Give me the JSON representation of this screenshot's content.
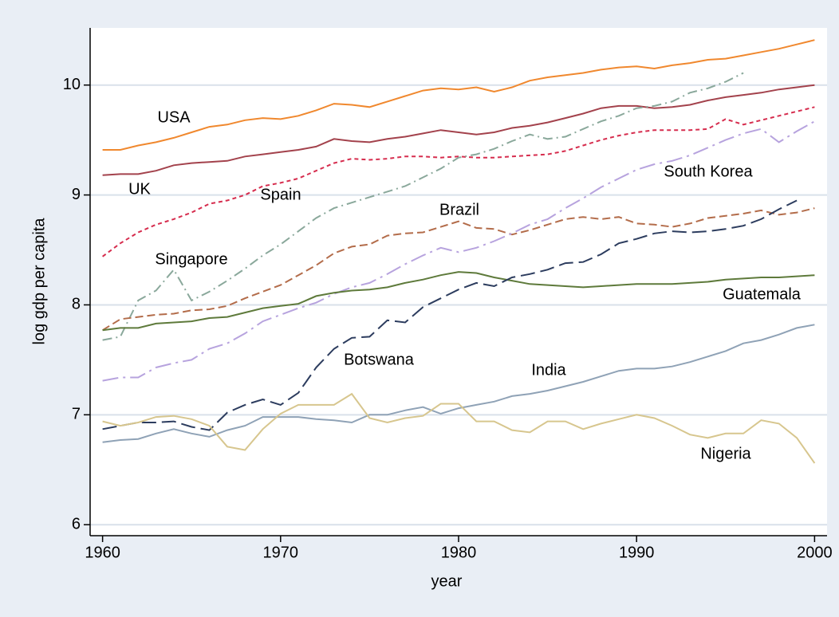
{
  "chart_data": {
    "type": "line",
    "x_label": "year",
    "y_label": "log gdp per capita",
    "x": [
      1960,
      1961,
      1962,
      1963,
      1964,
      1965,
      1966,
      1967,
      1968,
      1969,
      1970,
      1971,
      1972,
      1973,
      1974,
      1975,
      1976,
      1977,
      1978,
      1979,
      1980,
      1981,
      1982,
      1983,
      1984,
      1985,
      1986,
      1987,
      1988,
      1989,
      1990,
      1991,
      1992,
      1993,
      1994,
      1995,
      1996,
      1997,
      1998,
      1999,
      2000
    ],
    "xlim": [
      1959.3,
      2000.7
    ],
    "xticks": [
      1960,
      1970,
      1980,
      1990,
      2000
    ],
    "ylim": [
      5.9,
      10.52
    ],
    "yticks": [
      6,
      7,
      8,
      9,
      10
    ],
    "grid": true,
    "series": [
      {
        "name": "USA",
        "color": "#f0882e",
        "dash": "solid",
        "values": [
          9.41,
          9.41,
          9.45,
          9.48,
          9.52,
          9.57,
          9.62,
          9.64,
          9.68,
          9.7,
          9.69,
          9.72,
          9.77,
          9.83,
          9.82,
          9.8,
          9.85,
          9.9,
          9.95,
          9.97,
          9.96,
          9.98,
          9.94,
          9.98,
          10.04,
          10.07,
          10.09,
          10.11,
          10.14,
          10.16,
          10.17,
          10.15,
          10.18,
          10.2,
          10.23,
          10.24,
          10.27,
          10.3,
          10.33,
          10.37,
          10.41
        ]
      },
      {
        "name": "UK",
        "color": "#a3424c",
        "dash": "solid",
        "values": [
          9.18,
          9.19,
          9.19,
          9.22,
          9.27,
          9.29,
          9.3,
          9.31,
          9.35,
          9.37,
          9.39,
          9.41,
          9.44,
          9.51,
          9.49,
          9.48,
          9.51,
          9.53,
          9.56,
          9.59,
          9.57,
          9.55,
          9.57,
          9.61,
          9.63,
          9.66,
          9.7,
          9.74,
          9.79,
          9.81,
          9.81,
          9.79,
          9.8,
          9.82,
          9.86,
          9.89,
          9.91,
          9.93,
          9.96,
          9.98,
          10.0
        ]
      },
      {
        "name": "Spain",
        "color": "#d62d4e",
        "dash": "short",
        "values": [
          8.44,
          8.56,
          8.66,
          8.73,
          8.78,
          8.84,
          8.92,
          8.95,
          9.0,
          9.08,
          9.11,
          9.15,
          9.22,
          9.29,
          9.33,
          9.32,
          9.33,
          9.35,
          9.35,
          9.34,
          9.35,
          9.34,
          9.34,
          9.35,
          9.36,
          9.37,
          9.4,
          9.45,
          9.5,
          9.54,
          9.57,
          9.59,
          9.59,
          9.59,
          9.6,
          9.69,
          9.64,
          9.68,
          9.72,
          9.76,
          9.8
        ]
      },
      {
        "name": "Singapore",
        "color": "#8aa89b",
        "dash": "dash-dot",
        "values": [
          7.68,
          7.71,
          8.04,
          8.13,
          8.32,
          8.04,
          8.12,
          8.22,
          8.33,
          8.45,
          8.55,
          8.67,
          8.79,
          8.88,
          8.93,
          8.98,
          9.03,
          9.08,
          9.16,
          9.24,
          9.34,
          9.37,
          9.42,
          9.49,
          9.55,
          9.51,
          9.53,
          9.6,
          9.67,
          9.72,
          9.79,
          9.81,
          9.85,
          9.93,
          9.97,
          10.03,
          10.11,
          null,
          null,
          null,
          null
        ]
      },
      {
        "name": "Brazil",
        "color": "#b36c4a",
        "dash": "dash",
        "values": [
          7.77,
          7.87,
          7.89,
          7.91,
          7.92,
          7.95,
          7.96,
          7.99,
          8.06,
          8.12,
          8.18,
          8.27,
          8.36,
          8.47,
          8.53,
          8.55,
          8.63,
          8.65,
          8.66,
          8.71,
          8.76,
          8.7,
          8.69,
          8.64,
          8.68,
          8.73,
          8.78,
          8.8,
          8.78,
          8.8,
          8.74,
          8.73,
          8.71,
          8.74,
          8.79,
          8.81,
          8.83,
          8.86,
          8.82,
          8.84,
          8.88
        ]
      },
      {
        "name": "South Korea",
        "color": "#b7a3de",
        "dash": "long-dash-dot",
        "values": [
          7.31,
          7.34,
          7.34,
          7.43,
          7.47,
          7.5,
          7.6,
          7.65,
          7.74,
          7.85,
          7.91,
          7.97,
          8.02,
          8.1,
          8.16,
          8.2,
          8.28,
          8.37,
          8.45,
          8.52,
          8.48,
          8.52,
          8.58,
          8.65,
          8.73,
          8.78,
          8.88,
          8.97,
          9.07,
          9.15,
          9.23,
          9.28,
          9.31,
          9.36,
          9.43,
          9.5,
          9.56,
          9.6,
          9.48,
          9.58,
          9.67
        ]
      },
      {
        "name": "Guatemala",
        "color": "#5e7a3b",
        "dash": "solid",
        "values": [
          7.77,
          7.79,
          7.79,
          7.83,
          7.84,
          7.85,
          7.88,
          7.89,
          7.93,
          7.97,
          7.99,
          8.01,
          8.08,
          8.11,
          8.13,
          8.14,
          8.16,
          8.2,
          8.23,
          8.27,
          8.3,
          8.29,
          8.25,
          8.22,
          8.19,
          8.18,
          8.17,
          8.16,
          8.17,
          8.18,
          8.19,
          8.19,
          8.19,
          8.2,
          8.21,
          8.23,
          8.24,
          8.25,
          8.25,
          8.26,
          8.27
        ]
      },
      {
        "name": "Botswana",
        "color": "#2c3c5e",
        "dash": "long",
        "values": [
          6.87,
          6.9,
          6.93,
          6.93,
          6.94,
          6.89,
          6.86,
          7.02,
          7.09,
          7.14,
          7.09,
          7.2,
          7.43,
          7.6,
          7.7,
          7.71,
          7.86,
          7.84,
          7.98,
          8.06,
          8.14,
          8.2,
          8.17,
          8.25,
          8.28,
          8.32,
          8.38,
          8.39,
          8.46,
          8.56,
          8.6,
          8.65,
          8.67,
          8.66,
          8.67,
          8.69,
          8.72,
          8.78,
          8.87,
          8.95,
          null
        ]
      },
      {
        "name": "India",
        "color": "#8fa2b6",
        "dash": "solid",
        "values": [
          6.75,
          6.77,
          6.78,
          6.83,
          6.87,
          6.83,
          6.8,
          6.86,
          6.9,
          6.98,
          6.98,
          6.98,
          6.96,
          6.95,
          6.93,
          7.0,
          7.0,
          7.04,
          7.07,
          7.01,
          7.06,
          7.09,
          7.12,
          7.17,
          7.19,
          7.22,
          7.26,
          7.3,
          7.35,
          7.4,
          7.42,
          7.42,
          7.44,
          7.48,
          7.53,
          7.58,
          7.65,
          7.68,
          7.73,
          7.79,
          7.82
        ]
      },
      {
        "name": "Nigeria",
        "color": "#d7c68e",
        "dash": "solid",
        "values": [
          6.94,
          6.9,
          6.93,
          6.98,
          6.99,
          6.96,
          6.9,
          6.71,
          6.68,
          6.87,
          7.01,
          7.09,
          7.09,
          7.09,
          7.19,
          6.97,
          6.93,
          6.97,
          6.99,
          7.1,
          7.1,
          6.94,
          6.94,
          6.86,
          6.84,
          6.94,
          6.94,
          6.87,
          6.92,
          6.96,
          7.0,
          6.97,
          6.9,
          6.82,
          6.79,
          6.83,
          6.83,
          6.95,
          6.92,
          6.79,
          6.56
        ]
      }
    ]
  }
}
